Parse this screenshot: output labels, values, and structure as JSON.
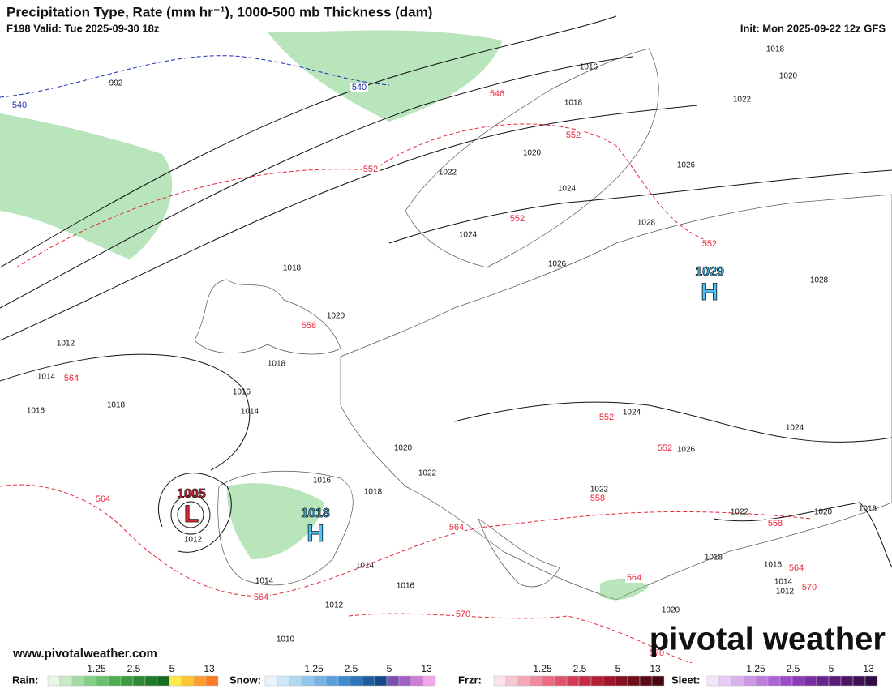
{
  "header": {
    "title": "Precipitation Type, Rate (mm hr⁻¹), 1000-500 mb Thickness (dam)",
    "valid": "F198 Valid: Tue 2025-09-30 18z",
    "init": "Init: Mon 2025-09-22 12z GFS"
  },
  "map": {
    "pressure_labels": [
      "992",
      "1016",
      "1018",
      "1018",
      "1020",
      "1022",
      "1020",
      "1022",
      "1024",
      "1026",
      "1028",
      "1024",
      "1026",
      "1028",
      "1018",
      "1020",
      "1018",
      "1012",
      "1014",
      "1018",
      "1016",
      "1016",
      "1014",
      "1020",
      "1022",
      "1016",
      "1018",
      "1012",
      "1014",
      "1014",
      "1016",
      "1012",
      "1010",
      "1024",
      "1026",
      "1024",
      "1022",
      "1022",
      "1020",
      "1018",
      "1018",
      "1016",
      "1014",
      "1012",
      "1020"
    ],
    "thickness_labels": [
      {
        "text": "540",
        "color": "#1a2fb0"
      },
      {
        "text": "540",
        "color": "#1a2fb0"
      },
      {
        "text": "546",
        "color": "#e8263a"
      },
      {
        "text": "552",
        "color": "#e8263a"
      },
      {
        "text": "552",
        "color": "#e8263a"
      },
      {
        "text": "552",
        "color": "#e8263a"
      },
      {
        "text": "552",
        "color": "#e8263a"
      },
      {
        "text": "558",
        "color": "#e8263a"
      },
      {
        "text": "564",
        "color": "#e8263a"
      },
      {
        "text": "564",
        "color": "#e8263a"
      },
      {
        "text": "552",
        "color": "#e8263a"
      },
      {
        "text": "552",
        "color": "#e8263a"
      },
      {
        "text": "558",
        "color": "#e8263a"
      },
      {
        "text": "564",
        "color": "#e8263a"
      },
      {
        "text": "564",
        "color": "#e8263a"
      },
      {
        "text": "570",
        "color": "#e8263a"
      },
      {
        "text": "558",
        "color": "#e8263a"
      },
      {
        "text": "564",
        "color": "#e8263a"
      },
      {
        "text": "570",
        "color": "#e8263a"
      },
      {
        "text": "564",
        "color": "#e8263a"
      },
      {
        "text": "570",
        "color": "#e8263a"
      }
    ],
    "centers": [
      {
        "letter": "L",
        "value": "1005",
        "color": "#e8263a"
      },
      {
        "letter": "H",
        "value": "1018",
        "color": "#4fc3f7"
      },
      {
        "letter": "H",
        "value": "1029",
        "color": "#4fc3f7"
      }
    ]
  },
  "footer": {
    "website": "www.pivotalweather.com",
    "brand": "pivotal weather",
    "legends": [
      {
        "label": "Rain:",
        "ticks": [
          "1.25",
          "2.5",
          "5",
          "13"
        ],
        "colors": [
          "#e8f6e8",
          "#c6ebc6",
          "#a5dca5",
          "#86cf86",
          "#69c169",
          "#4caf50",
          "#3b9b40",
          "#2e8a34",
          "#1f7a29",
          "#176b20",
          "#ffe94d",
          "#ffc533",
          "#ff9f2b",
          "#ff7b22"
        ]
      },
      {
        "label": "Snow:",
        "ticks": [
          "1.25",
          "2.5",
          "5",
          "13"
        ],
        "colors": [
          "#eaf4fb",
          "#cfe6f6",
          "#b3d7f1",
          "#94c5ea",
          "#76b2e2",
          "#5a9fd9",
          "#3e8bcf",
          "#2a75bb",
          "#1d5ea2",
          "#144a88",
          "#7a4fb0",
          "#a35fc4",
          "#d07bd6",
          "#f2a8e8"
        ]
      },
      {
        "label": "Frzr:",
        "ticks": [
          "1.25",
          "2.5",
          "5",
          "13"
        ],
        "colors": [
          "#fde4ea",
          "#f9c7d2",
          "#f5a8b8",
          "#f08a9e",
          "#ea6c84",
          "#e3526c",
          "#d83b56",
          "#c92a43",
          "#b51f36",
          "#9c172b",
          "#841222",
          "#6e0e1c",
          "#5a0b17",
          "#480812"
        ]
      },
      {
        "label": "Sleet:",
        "ticks": [
          "1.25",
          "2.5",
          "5",
          "13"
        ],
        "colors": [
          "#f4e6fa",
          "#e7cdf4",
          "#d9b3ed",
          "#cb98e6",
          "#bd7ede",
          "#ae64d5",
          "#9d4cc8",
          "#8b3bb6",
          "#7a2ea3",
          "#69238f",
          "#5a1b7b",
          "#4c1568",
          "#3f1056",
          "#320b45"
        ]
      }
    ]
  }
}
